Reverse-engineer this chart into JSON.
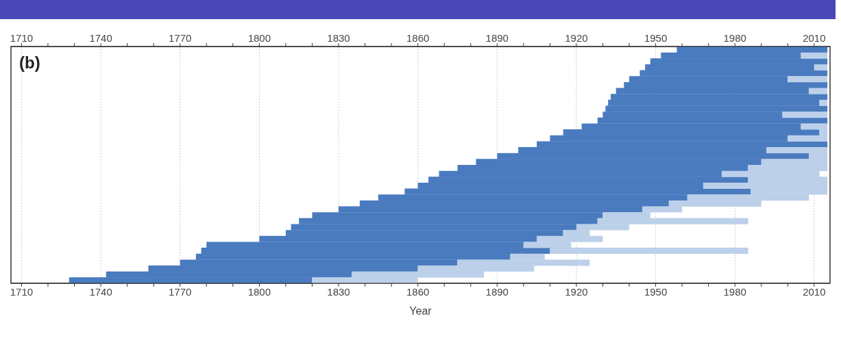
{
  "chart_data": {
    "type": "bar",
    "orientation": "horizontal",
    "xlabel": "Year",
    "annotations": [
      "(b)"
    ],
    "categories": [
      null,
      null,
      null,
      null,
      null,
      null,
      null,
      null,
      null,
      null,
      null,
      null,
      null,
      null,
      null,
      null,
      null,
      null,
      null,
      null,
      null,
      null,
      null,
      null,
      null,
      null,
      null,
      null,
      null,
      null,
      null,
      null,
      null,
      null,
      null,
      null,
      null,
      null,
      null,
      null
    ],
    "series": [
      {
        "color": "#4a7bbf",
        "base": [
          1958,
          1952,
          1948,
          1946,
          1944,
          1940,
          1938,
          1935,
          1933,
          1932,
          1931,
          1930,
          1928,
          1922,
          1915,
          1910,
          1905,
          1898,
          1890,
          1882,
          1875,
          1868,
          1864,
          1860,
          1855,
          1845,
          1838,
          1830,
          1820,
          1815,
          1812,
          1810,
          1800,
          1780,
          1778,
          1776,
          1770,
          1758,
          1742,
          1728
        ],
        "values": [
          57,
          53,
          67,
          64,
          71,
          60,
          77,
          73,
          82,
          80,
          84,
          68,
          87,
          83,
          97,
          90,
          110,
          94,
          118,
          108,
          110,
          107,
          121,
          108,
          131,
          117,
          117,
          115,
          110,
          113,
          108,
          105,
          105,
          120,
          132,
          119,
          105,
          102,
          93,
          92
        ]
      },
      {
        "color": "#bcd0ea",
        "base": [
          null,
          2005,
          null,
          2010,
          null,
          2000,
          null,
          2008,
          null,
          2012,
          null,
          1998,
          null,
          2005,
          2012,
          2000,
          null,
          1992,
          2008,
          1990,
          1985,
          1975,
          1985,
          1968,
          1986,
          1962,
          1955,
          1945,
          1930,
          1928,
          1920,
          1915,
          1905,
          1900,
          1910,
          1895,
          1875,
          1860,
          1835,
          1820
        ],
        "values": [
          null,
          10,
          null,
          5,
          null,
          15,
          null,
          7,
          null,
          3,
          null,
          17,
          null,
          10,
          3,
          15,
          null,
          23,
          7,
          25,
          30,
          37,
          30,
          47,
          29,
          46,
          35,
          15,
          18,
          57,
          20,
          10,
          25,
          18,
          75,
          13,
          50,
          44,
          50,
          40
        ]
      }
    ],
    "xlim": [
      1706,
      2016
    ],
    "xticks": [
      1710,
      {
        "value": 1720,
        "label": null
      },
      {
        "value": 1730,
        "label": null
      },
      1740,
      {
        "value": 1750,
        "label": null
      },
      {
        "value": 1760,
        "label": null
      },
      1770,
      {
        "value": 1780,
        "label": null
      },
      {
        "value": 1790,
        "label": null
      },
      1800,
      {
        "value": 1810,
        "label": null
      },
      {
        "value": 1820,
        "label": null
      },
      1830,
      {
        "value": 1840,
        "label": null
      },
      {
        "value": 1850,
        "label": null
      },
      1860,
      {
        "value": 1870,
        "label": null
      },
      {
        "value": 1880,
        "label": null
      },
      1890,
      {
        "value": 1900,
        "label": null
      },
      {
        "value": 1910,
        "label": null
      },
      1920,
      {
        "value": 1930,
        "label": null
      },
      {
        "value": 1940,
        "label": null
      },
      1950,
      {
        "value": 1960,
        "label": null
      },
      {
        "value": 1970,
        "label": null
      },
      1980,
      {
        "value": 1990,
        "label": null
      },
      {
        "value": 2000,
        "label": null
      },
      2010
    ],
    "x2lim": [
      1706,
      2016
    ],
    "x2ticks": [
      1710,
      {
        "value": 1720,
        "label": null
      },
      {
        "value": 1730,
        "label": null
      },
      1740,
      {
        "value": 1750,
        "label": null
      },
      {
        "value": 1760,
        "label": null
      },
      1770,
      {
        "value": 1780,
        "label": null
      },
      {
        "value": 1790,
        "label": null
      },
      1800,
      {
        "value": 1810,
        "label": null
      },
      {
        "value": 1820,
        "label": null
      },
      1830,
      {
        "value": 1840,
        "label": null
      },
      {
        "value": 1850,
        "label": null
      },
      1860,
      {
        "value": 1870,
        "label": null
      },
      {
        "value": 1880,
        "label": null
      },
      1890,
      {
        "value": 1900,
        "label": null
      },
      {
        "value": 1910,
        "label": null
      },
      1920,
      {
        "value": 1930,
        "label": null
      },
      {
        "value": 1940,
        "label": null
      },
      1950,
      {
        "value": 1960,
        "label": null
      },
      {
        "value": 1970,
        "label": null
      },
      1980,
      {
        "value": 1990,
        "label": null
      },
      {
        "value": 2000,
        "label": null
      },
      2010
    ],
    "grid": "x",
    "tick_labels": "x"
  }
}
